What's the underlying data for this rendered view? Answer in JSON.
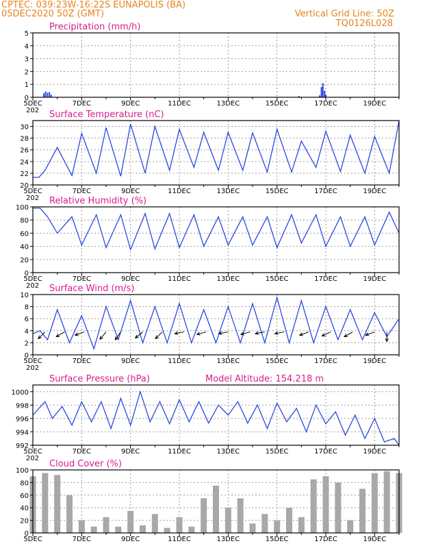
{
  "header": {
    "line1_left": "CPTEC:   039:23W-16:22S   EUNAPOLIS (BA)",
    "line2_left": "05DEC2020 50Z (GMT)",
    "line1_right": "Vertical Grid Line: 50Z",
    "line2_right": "TQ0126L028"
  },
  "colors": {
    "header": "#e8821e",
    "title": "#d81b8c",
    "series": "#2a49e0",
    "cloud": "#a8a8a8",
    "precip": "#2a49e0"
  },
  "x_axis": {
    "labels": [
      "5DEC",
      "7DEC",
      "9DEC",
      "11DEC",
      "13DEC",
      "15DEC",
      "17DEC",
      "19DEC"
    ],
    "year_stub": "202",
    "days_from": 0,
    "days_to": 15
  },
  "chart_data": [
    {
      "type": "bar",
      "title": "Precipitation (mm/h)",
      "ylim": [
        0,
        5
      ],
      "yticks": [
        0,
        1,
        2,
        3,
        4,
        5
      ],
      "x": [
        0.45,
        0.52,
        0.6,
        0.68,
        0.75,
        10.9,
        11.75,
        11.82,
        11.88,
        11.95,
        12.0
      ],
      "values": [
        0.3,
        0.45,
        0.35,
        0.4,
        0.2,
        0.1,
        0.15,
        0.8,
        1.1,
        0.5,
        0.2
      ]
    },
    {
      "type": "line",
      "title": "Surface Temperature (nC)",
      "ylim": [
        20,
        31
      ],
      "yticks": [
        20,
        22,
        24,
        26,
        28,
        30
      ],
      "x": [
        0,
        0.25,
        0.5,
        1,
        1.6,
        2,
        2.6,
        3,
        3.6,
        4,
        4.6,
        5,
        5.6,
        6,
        6.6,
        7,
        7.6,
        8,
        8.6,
        9,
        9.6,
        10,
        10.6,
        11,
        11.6,
        12,
        12.6,
        13,
        13.6,
        14,
        14.6,
        15
      ],
      "values": [
        21.3,
        21.3,
        22.5,
        26.4,
        21.6,
        28.8,
        22.0,
        29.8,
        21.5,
        30.4,
        22.0,
        30.0,
        22.5,
        29.5,
        23.0,
        29.0,
        22.5,
        29.0,
        22.5,
        28.9,
        22.2,
        29.5,
        22.2,
        27.5,
        23.0,
        29.2,
        22.3,
        28.5,
        22.0,
        28.3,
        22.0,
        31.0
      ]
    },
    {
      "type": "line",
      "title": "Relative Humidity (%)",
      "ylim": [
        0,
        100
      ],
      "yticks": [
        0,
        20,
        40,
        60,
        80,
        100
      ],
      "x": [
        0,
        0.3,
        0.6,
        1,
        1.6,
        2,
        2.6,
        3,
        3.6,
        4,
        4.6,
        5,
        5.6,
        6,
        6.6,
        7,
        7.6,
        8,
        8.6,
        9,
        9.6,
        10,
        10.6,
        11,
        11.6,
        12,
        12.6,
        13,
        13.6,
        14,
        14.6,
        15
      ],
      "values": [
        98,
        98,
        85,
        60,
        85,
        42,
        88,
        38,
        88,
        35,
        90,
        36,
        90,
        38,
        88,
        40,
        85,
        42,
        85,
        42,
        85,
        38,
        88,
        45,
        88,
        40,
        85,
        40,
        85,
        42,
        92,
        60
      ]
    },
    {
      "type": "line",
      "title": "Surface Wind (m/s)",
      "ylim": [
        0,
        10
      ],
      "yticks": [
        0,
        2,
        4,
        6,
        8,
        10
      ],
      "x": [
        0,
        0.3,
        0.6,
        1,
        1.5,
        2,
        2.5,
        3,
        3.5,
        4,
        4.5,
        5,
        5.5,
        6,
        6.5,
        7,
        7.5,
        8,
        8.5,
        9,
        9.5,
        10,
        10.5,
        11,
        11.5,
        12,
        12.5,
        13,
        13.5,
        14,
        14.5,
        15
      ],
      "values": [
        3.5,
        4.0,
        2.5,
        7.5,
        2.0,
        6.5,
        1.0,
        8.0,
        2.5,
        9.0,
        2.0,
        8.0,
        2.0,
        8.5,
        2.0,
        7.5,
        2.0,
        8.0,
        2.0,
        8.5,
        2.0,
        9.5,
        2.0,
        9.0,
        2.0,
        8.0,
        2.5,
        7.5,
        2.5,
        7.0,
        3.0,
        6.0
      ],
      "vector_x": [
        0.5,
        1.3,
        2.1,
        3.0,
        3.6,
        4.5,
        5.3,
        6.2,
        7.1,
        8.0,
        8.9,
        9.5,
        10.3,
        11.3,
        12.2,
        13.1,
        14.0,
        14.5
      ],
      "vector_angle_deg": [
        225,
        210,
        200,
        230,
        235,
        220,
        225,
        190,
        195,
        190,
        195,
        190,
        190,
        200,
        205,
        210,
        200,
        270
      ]
    },
    {
      "type": "line",
      "title": "Surface Pressure (hPa)",
      "subtitle": "Model Altitude: 154.218  m",
      "ylim": [
        992,
        1001
      ],
      "yticks": [
        992,
        994,
        996,
        998,
        1000
      ],
      "x": [
        0,
        0.25,
        0.5,
        0.8,
        1.2,
        1.6,
        2,
        2.4,
        2.8,
        3.2,
        3.6,
        4,
        4.4,
        4.8,
        5.2,
        5.6,
        6,
        6.4,
        6.8,
        7.2,
        7.6,
        8,
        8.4,
        8.8,
        9.2,
        9.6,
        10,
        10.4,
        10.8,
        11.2,
        11.6,
        12,
        12.4,
        12.8,
        13.2,
        13.6,
        14,
        14.4,
        14.8,
        15
      ],
      "values": [
        996.5,
        997.5,
        998.5,
        996.0,
        997.8,
        995.0,
        998.5,
        995.5,
        998.5,
        994.5,
        999.0,
        995.0,
        1000.0,
        995.5,
        998.5,
        995.2,
        998.8,
        995.5,
        998.5,
        995.3,
        998.0,
        996.5,
        998.5,
        995.3,
        998.0,
        994.5,
        998.3,
        995.5,
        997.5,
        994.0,
        998.0,
        995.2,
        997.0,
        993.5,
        996.5,
        993.0,
        996.0,
        992.5,
        993.0,
        992.0
      ]
    },
    {
      "type": "bar",
      "title": "Cloud Cover (%)",
      "ylim": [
        0,
        100
      ],
      "yticks": [
        0,
        20,
        40,
        60,
        80,
        100
      ],
      "x": [
        0,
        0.5,
        1,
        1.5,
        2,
        2.5,
        3,
        3.5,
        4,
        4.5,
        5,
        5.5,
        6,
        6.5,
        7,
        7.5,
        8,
        8.5,
        9,
        9.5,
        10,
        10.5,
        11,
        11.5,
        12,
        12.5,
        13,
        13.5,
        14,
        14.5,
        15
      ],
      "values": [
        90,
        95,
        92,
        60,
        20,
        10,
        25,
        10,
        35,
        12,
        30,
        8,
        25,
        10,
        55,
        75,
        40,
        55,
        15,
        30,
        20,
        40,
        25,
        85,
        90,
        80,
        20,
        70,
        95,
        98,
        95
      ]
    }
  ]
}
